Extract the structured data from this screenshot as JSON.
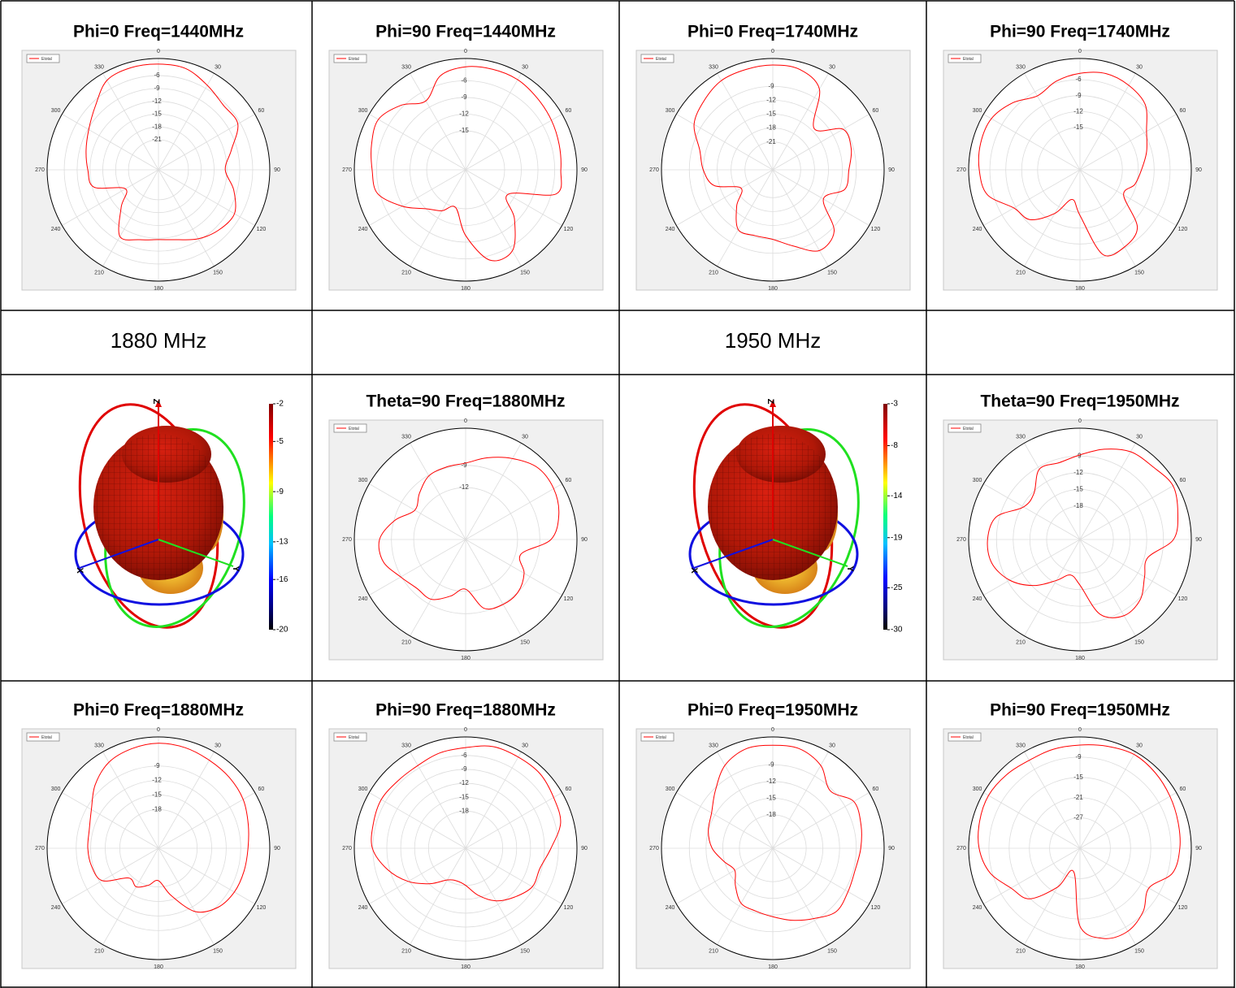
{
  "labels": [
    "1880 MHz",
    "1950 MHz"
  ],
  "chart_data": [
    {
      "type": "polar",
      "title": "Phi=0 Freq=1440MHz",
      "x": [
        0,
        15,
        30,
        45,
        60,
        75,
        90,
        105,
        120,
        135,
        150,
        165,
        180,
        195,
        210,
        225,
        240,
        255,
        270,
        285,
        300,
        315,
        330,
        345
      ],
      "series": [
        {
          "name": "Etotal",
          "color": "#ff0000",
          "values": [
            -3.3,
            -3.5,
            -5.2,
            -6.6,
            -6.6,
            -10.4,
            -12.4,
            -9.8,
            -7.5,
            -8.1,
            -9.4,
            -11.1,
            -11.7,
            -11.1,
            -10.0,
            -15.7,
            -19.1,
            -12.4,
            -11.5,
            -10.5,
            -9.2,
            -7.1,
            -3.9,
            -3.3
          ]
        }
      ],
      "rlim": [
        -28,
        -2
      ],
      "rticks": [
        -6,
        -9,
        -12,
        -15,
        -18,
        -21
      ],
      "xticks": [
        0,
        30,
        60,
        90,
        120,
        150,
        180,
        210,
        240,
        270,
        300,
        330
      ]
    },
    {
      "type": "polar",
      "title": "Phi=90 Freq=1440MHz",
      "x": [
        0,
        15,
        30,
        45,
        60,
        75,
        90,
        105,
        120,
        135,
        150,
        165,
        180,
        195,
        210,
        225,
        240,
        255,
        270,
        285,
        300,
        315,
        330,
        345
      ],
      "series": [
        {
          "name": "Etotal",
          "color": "#ff0000",
          "values": [
            -3.5,
            -3.3,
            -3.3,
            -3.8,
            -4.2,
            -4.6,
            -4.9,
            -5.2,
            -13.2,
            -9.6,
            -5.2,
            -5.2,
            -10.2,
            -15.0,
            -13.5,
            -12.1,
            -8.9,
            -5.6,
            -5.2,
            -4.5,
            -3.9,
            -5.6,
            -7.7,
            -4.5
          ]
        }
      ],
      "rlim": [
        -22,
        -2
      ],
      "rticks": [
        -6,
        -9,
        -12,
        -15
      ],
      "xticks": [
        0,
        30,
        60,
        90,
        120,
        150,
        180,
        210,
        240,
        270,
        300,
        330
      ]
    },
    {
      "type": "polar",
      "title": "Phi=0 Freq=1740MHz",
      "x": [
        0,
        15,
        30,
        45,
        60,
        75,
        90,
        105,
        120,
        135,
        150,
        165,
        180,
        195,
        210,
        225,
        240,
        255,
        270,
        285,
        300,
        315,
        330,
        345
      ],
      "series": [
        {
          "name": "Etotal",
          "color": "#ff0000",
          "values": [
            -4.4,
            -4.6,
            -6.9,
            -14.4,
            -9.5,
            -9.5,
            -10.6,
            -10.9,
            -14.4,
            -8.3,
            -6.9,
            -10.0,
            -12.0,
            -12.3,
            -12.1,
            -16.0,
            -19.1,
            -13.9,
            -12.0,
            -10.7,
            -7.4,
            -6.0,
            -4.8,
            -4.6
          ]
        }
      ],
      "rlim": [
        -27,
        -3
      ],
      "rticks": [
        -9,
        -12,
        -15,
        -18,
        -21
      ],
      "xticks": [
        0,
        30,
        60,
        90,
        120,
        150,
        180,
        210,
        240,
        270,
        300,
        330
      ]
    },
    {
      "type": "polar",
      "title": "Phi=90 Freq=1740MHz",
      "x": [
        0,
        15,
        30,
        45,
        60,
        75,
        90,
        105,
        120,
        135,
        150,
        165,
        180,
        195,
        210,
        225,
        240,
        255,
        270,
        285,
        300,
        315,
        330,
        345
      ],
      "series": [
        {
          "name": "Etotal",
          "color": "#ff0000",
          "values": [
            -4.8,
            -4.2,
            -4.6,
            -5.6,
            -8.5,
            -10.0,
            -11.4,
            -12.3,
            -13.5,
            -7.7,
            -6.2,
            -6.5,
            -14.4,
            -17.2,
            -13.5,
            -9.7,
            -8.6,
            -4.9,
            -4.0,
            -3.6,
            -3.7,
            -5.1,
            -6.9,
            -5.7
          ]
        }
      ],
      "rlim": [
        -23,
        -2
      ],
      "rticks": [
        -6,
        -9,
        -12,
        -15
      ],
      "xticks": [
        0,
        30,
        60,
        90,
        120,
        150,
        180,
        210,
        240,
        270,
        300,
        330
      ]
    },
    {
      "type": "surface3d",
      "axis_labels": [
        "Z",
        "X",
        "Y"
      ],
      "clim": [
        -20,
        -2
      ],
      "cticks": [
        -2,
        -5,
        -9,
        -13,
        -16,
        -20
      ]
    },
    {
      "type": "polar",
      "title": "Theta=90 Freq=1880MHz",
      "x": [
        0,
        15,
        30,
        45,
        60,
        75,
        90,
        105,
        120,
        135,
        150,
        165,
        180,
        195,
        210,
        225,
        240,
        255,
        270,
        285,
        300,
        315,
        330,
        345
      ],
      "series": [
        {
          "name": "Etotal",
          "color": "#ff0000",
          "values": [
            -8.7,
            -7.6,
            -6.4,
            -5.3,
            -5.3,
            -6.0,
            -7.5,
            -11.3,
            -9.9,
            -9.0,
            -8.9,
            -9.4,
            -12.3,
            -11.1,
            -9.7,
            -9.7,
            -8.9,
            -7.5,
            -7.4,
            -9.1,
            -11.1,
            -10.2,
            -9.1,
            -8.9
          ]
        }
      ],
      "rlim": [
        -19,
        -4
      ],
      "rticks": [
        -9,
        -12
      ],
      "xticks": [
        0,
        30,
        60,
        90,
        120,
        150,
        180,
        210,
        240,
        270,
        300,
        330
      ]
    },
    {
      "type": "surface3d",
      "axis_labels": [
        "Z",
        "X",
        "Y"
      ],
      "clim": [
        -30,
        -3
      ],
      "cticks": [
        -3,
        -8,
        -14,
        -19,
        -25,
        -30
      ]
    },
    {
      "type": "polar",
      "title": "Theta=90 Freq=1950MHz",
      "x": [
        0,
        15,
        30,
        45,
        60,
        75,
        90,
        105,
        120,
        135,
        150,
        165,
        180,
        195,
        210,
        225,
        240,
        255,
        270,
        285,
        300,
        315,
        330,
        345
      ],
      "series": [
        {
          "name": "Etotal",
          "color": "#ff0000",
          "values": [
            -8.8,
            -7.2,
            -5.8,
            -5.5,
            -4.7,
            -5.8,
            -7.2,
            -11.4,
            -10.6,
            -8.7,
            -8.2,
            -10.1,
            -15.8,
            -17.4,
            -15.5,
            -12.3,
            -9.4,
            -7.6,
            -7.4,
            -8.4,
            -12.3,
            -12.3,
            -9.4,
            -9.7
          ]
        }
      ],
      "rlim": [
        -24,
        -4
      ],
      "rticks": [
        -9,
        -12,
        -15,
        -18
      ],
      "xticks": [
        0,
        30,
        60,
        90,
        120,
        150,
        180,
        210,
        240,
        270,
        300,
        330
      ]
    },
    {
      "type": "polar",
      "title": "Phi=0 Freq=1880MHz",
      "x": [
        0,
        15,
        30,
        45,
        60,
        75,
        90,
        105,
        120,
        135,
        150,
        165,
        180,
        195,
        210,
        225,
        240,
        255,
        270,
        285,
        300,
        315,
        330,
        345
      ],
      "series": [
        {
          "name": "Etotal",
          "color": "#ff0000",
          "values": [
            -4.3,
            -4.5,
            -5.0,
            -5.3,
            -5.8,
            -6.8,
            -7.5,
            -7.7,
            -7.9,
            -8.7,
            -10.9,
            -15.9,
            -19.3,
            -18.1,
            -16.8,
            -17.3,
            -12.6,
            -11.7,
            -11.4,
            -11.2,
            -10.0,
            -7.5,
            -5.5,
            -4.7
          ]
        }
      ],
      "rlim": [
        -26,
        -3
      ],
      "rticks": [
        -9,
        -12,
        -15,
        -18
      ],
      "xticks": [
        0,
        30,
        60,
        90,
        120,
        150,
        180,
        210,
        240,
        270,
        300,
        330
      ]
    },
    {
      "type": "polar",
      "title": "Phi=90 Freq=1880MHz",
      "x": [
        0,
        15,
        30,
        45,
        60,
        75,
        90,
        105,
        120,
        135,
        150,
        165,
        180,
        195,
        210,
        225,
        240,
        255,
        270,
        285,
        300,
        315,
        330,
        345
      ],
      "series": [
        {
          "name": "Etotal",
          "color": "#ff0000",
          "values": [
            -4.3,
            -3.3,
            -3.3,
            -3.3,
            -4.1,
            -4.8,
            -7.6,
            -9.4,
            -9.4,
            -11.1,
            -12.9,
            -15.5,
            -18.0,
            -18.7,
            -18.1,
            -15.2,
            -11.7,
            -8.5,
            -5.9,
            -5.4,
            -5.0,
            -5.4,
            -5.4,
            -4.7
          ]
        }
      ],
      "rlim": [
        -26,
        -2
      ],
      "rticks": [
        -6,
        -9,
        -12,
        -15,
        -18
      ],
      "xticks": [
        0,
        30,
        60,
        90,
        120,
        150,
        180,
        210,
        240,
        270,
        300,
        330
      ]
    },
    {
      "type": "polar",
      "title": "Phi=0 Freq=1950MHz",
      "x": [
        0,
        15,
        30,
        45,
        60,
        75,
        90,
        105,
        120,
        135,
        150,
        165,
        180,
        195,
        210,
        225,
        240,
        255,
        270,
        285,
        300,
        315,
        330,
        345
      ],
      "series": [
        {
          "name": "Etotal",
          "color": "#ff0000",
          "values": [
            -5.5,
            -5.5,
            -6.8,
            -9.4,
            -7.2,
            -7.6,
            -8.2,
            -8.7,
            -8.4,
            -7.9,
            -9.4,
            -10.6,
            -11.7,
            -12.3,
            -12.6,
            -14.5,
            -16.1,
            -14.9,
            -13.1,
            -12.0,
            -11.3,
            -9.4,
            -6.8,
            -5.5
          ]
        }
      ],
      "rlim": [
        -24,
        -4
      ],
      "rticks": [
        -9,
        -12,
        -15,
        -18
      ],
      "xticks": [
        0,
        30,
        60,
        90,
        120,
        150,
        180,
        210,
        240,
        270,
        300,
        330
      ]
    },
    {
      "type": "polar",
      "title": "Phi=90 Freq=1950MHz",
      "x": [
        0,
        15,
        30,
        45,
        60,
        75,
        90,
        105,
        120,
        135,
        150,
        165,
        180,
        195,
        210,
        225,
        240,
        255,
        270,
        285,
        300,
        315,
        330,
        345
      ],
      "series": [
        {
          "name": "Etotal",
          "color": "#ff0000",
          "values": [
            -5.4,
            -4.7,
            -3.9,
            -4.4,
            -5.2,
            -5.9,
            -6.4,
            -7.6,
            -12.4,
            -9.5,
            -7.6,
            -8.3,
            -12.9,
            -28.8,
            -22.7,
            -14.8,
            -12.4,
            -8.3,
            -6.1,
            -5.2,
            -4.7,
            -5.2,
            -5.9,
            -5.6
          ]
        }
      ],
      "rlim": [
        -36,
        -3
      ],
      "rticks": [
        -9,
        -15,
        -21,
        -27
      ],
      "xticks": [
        0,
        30,
        60,
        90,
        120,
        150,
        180,
        210,
        240,
        270,
        300,
        330
      ]
    }
  ]
}
